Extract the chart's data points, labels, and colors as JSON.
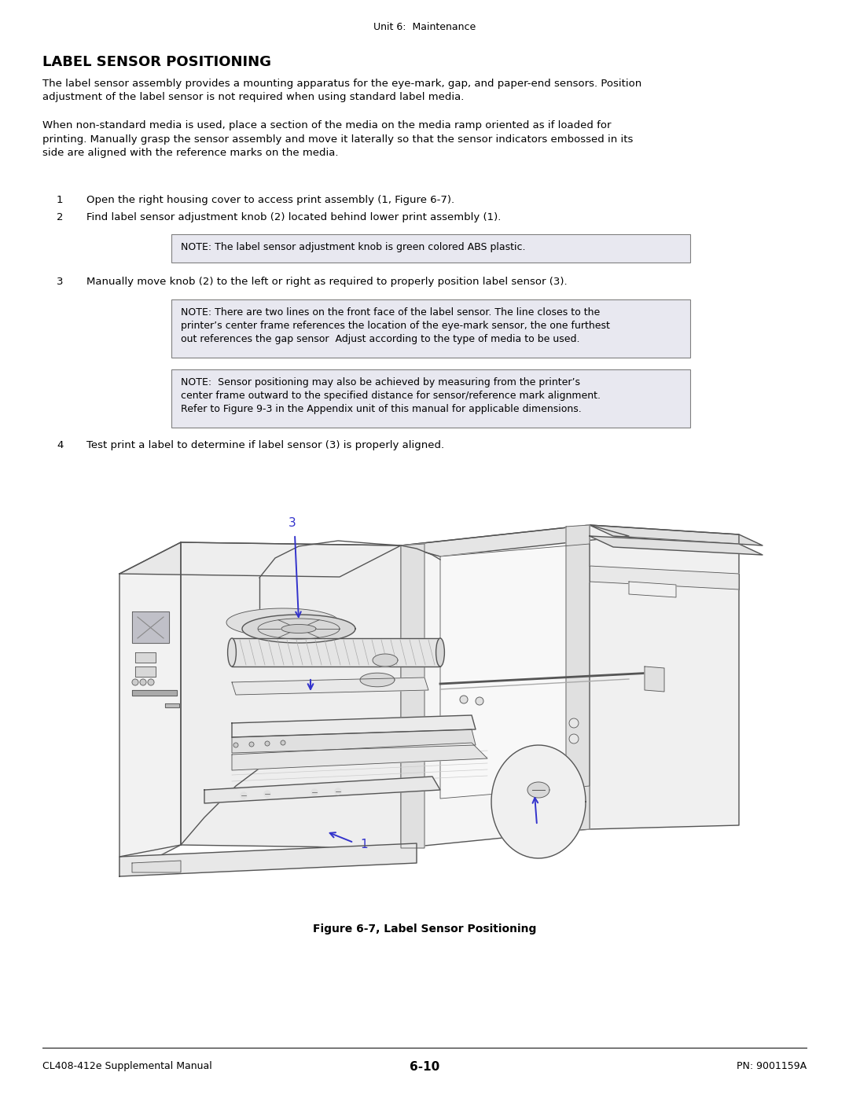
{
  "page_title": "Unit 6:  Maintenance",
  "section_title": "LABEL SENSOR POSITIONING",
  "para1": "The label sensor assembly provides a mounting apparatus for the eye-mark, gap, and paper-end sensors. Position\nadjustment of the label sensor is not required when using standard label media.",
  "para2": "When non-standard media is used, place a section of the media on the media ramp oriented as if loaded for\nprinting. Manually grasp the sensor assembly and move it laterally so that the sensor indicators embossed in its\nside are aligned with the reference marks on the media.",
  "step1_num": "1",
  "step1_text": "Open the right housing cover to access print assembly (1, Figure 6-7).",
  "step2_num": "2",
  "step2_text": "Find label sensor adjustment knob (2) located behind lower print assembly (1).",
  "note1": "NOTE: The label sensor adjustment knob is green colored ABS plastic.",
  "step3_num": "3",
  "step3_text": "Manually move knob (2) to the left or right as required to properly position label sensor (3).",
  "note2_line1": "NOTE: There are two lines on the front face of the label sensor. The line closes to the",
  "note2_line2": "printer’s center frame references the location of the eye-mark sensor, the one furthest",
  "note2_line3": "out references the gap sensor  Adjust according to the type of media to be used.",
  "note3_line1": "NOTE:  Sensor positioning may also be achieved by measuring from the printer’s",
  "note3_line2": "center frame outward to the specified distance for sensor/reference mark alignment.",
  "note3_line3": "Refer to Figure 9-3 in the Appendix unit of this manual for applicable dimensions.",
  "step4_num": "4",
  "step4_text": "Test print a label to determine if label sensor (3) is properly aligned.",
  "figure_caption": "Figure 6-7, Label Sensor Positioning",
  "footer_left": "CL408-412e Supplemental Manual",
  "footer_center": "6-10",
  "footer_right": "PN: 9001159A",
  "bg_color": "#ffffff",
  "text_color": "#000000",
  "note_bg": "#e8e8f0",
  "note_border": "#808080",
  "blue_color": "#3333cc",
  "line_color": "#555555",
  "light_line": "#888888"
}
